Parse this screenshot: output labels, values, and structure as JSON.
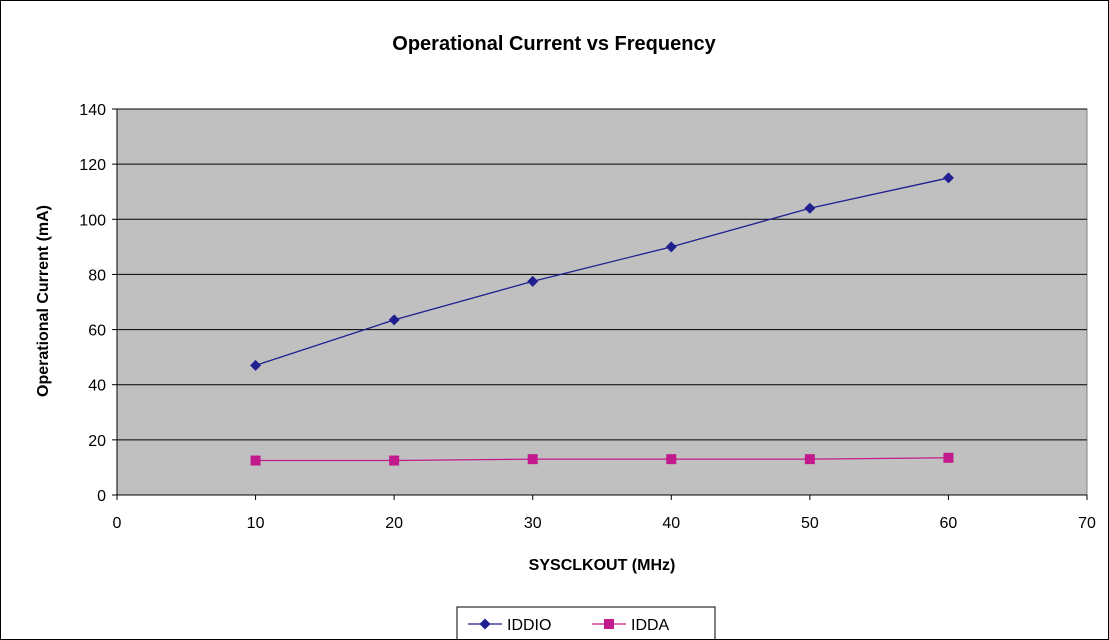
{
  "chart_data": {
    "type": "line",
    "title": "Operational Current vs Frequency",
    "xlabel": "SYSCLKOUT (MHz)",
    "ylabel": "Operational Current (mA)",
    "xlim": [
      0,
      70
    ],
    "ylim": [
      0,
      140
    ],
    "x_ticks": [
      0,
      10,
      20,
      30,
      40,
      50,
      60,
      70
    ],
    "y_ticks": [
      0,
      20,
      40,
      60,
      80,
      100,
      120,
      140
    ],
    "grid": "horizontal",
    "plot_background": "#c0c0c0",
    "legend_position": "bottom-center",
    "x": [
      10,
      20,
      30,
      40,
      50,
      60
    ],
    "series": [
      {
        "name": "IDDIO",
        "values": [
          47,
          63.5,
          77.5,
          90,
          104,
          115
        ],
        "color": "#1f1f8f",
        "marker": "diamond"
      },
      {
        "name": "IDDA",
        "values": [
          12.5,
          12.5,
          13,
          13,
          13,
          13.5
        ],
        "color": "#c21a8c",
        "marker": "square"
      }
    ]
  }
}
